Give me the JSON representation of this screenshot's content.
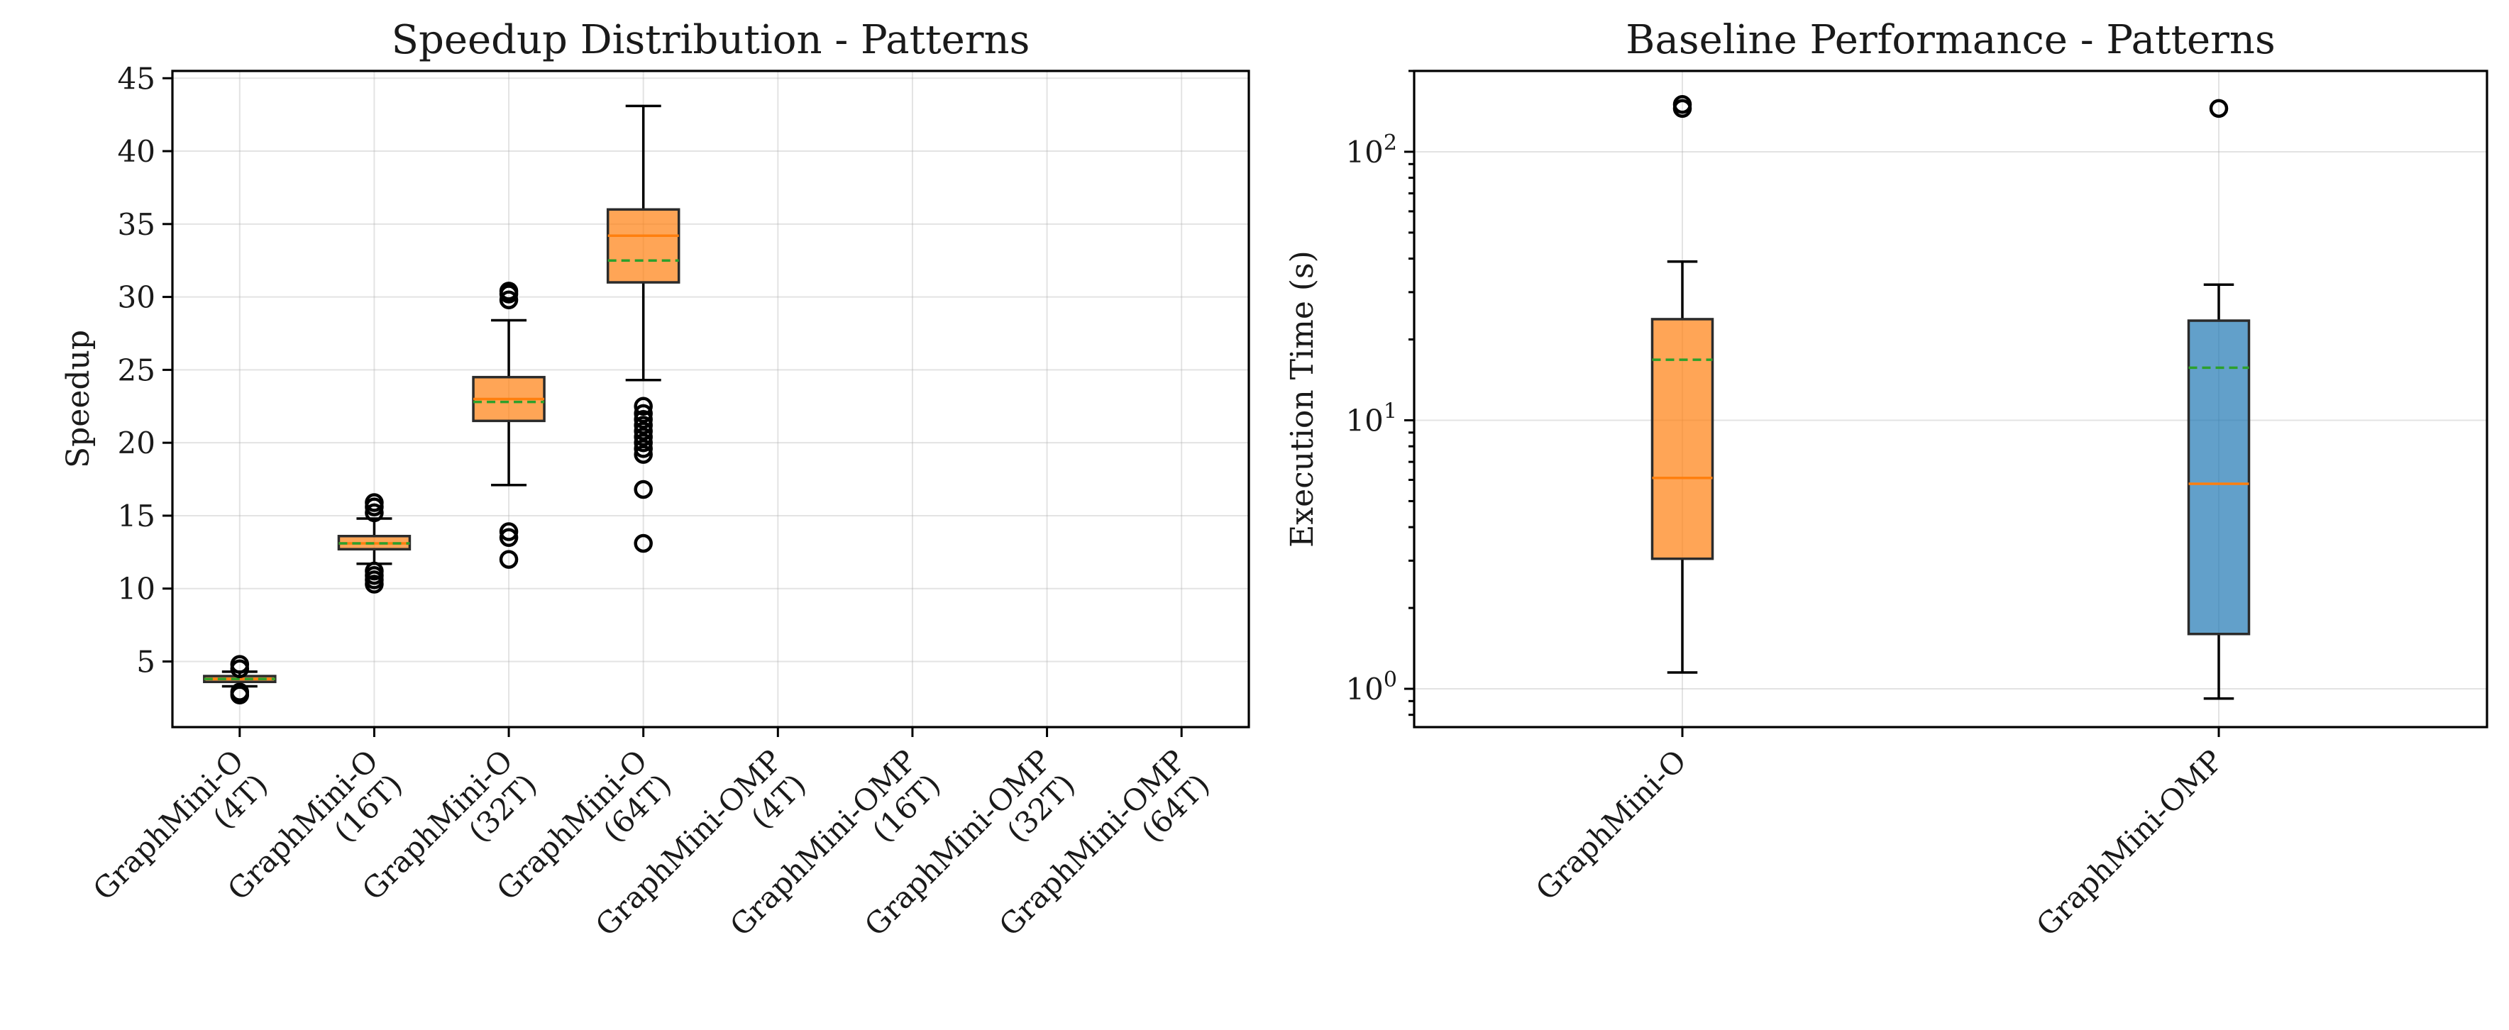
{
  "chart_data": [
    {
      "type": "box",
      "title": "Speedup Distribution - Patterns",
      "xlabel": "",
      "ylabel": "Speedup",
      "yscale": "linear",
      "ylim": [
        0.5,
        45.5
      ],
      "yticks": [
        5,
        10,
        15,
        20,
        25,
        30,
        35,
        40,
        45
      ],
      "grid": true,
      "categories": [
        [
          "GraphMini-O",
          "(4T)"
        ],
        [
          "GraphMini-O",
          "(16T)"
        ],
        [
          "GraphMini-O",
          "(32T)"
        ],
        [
          "GraphMini-O",
          "(64T)"
        ],
        [
          "GraphMini-OMP",
          "(4T)"
        ],
        [
          "GraphMini-OMP",
          "(16T)"
        ],
        [
          "GraphMini-OMP",
          "(32T)"
        ],
        [
          "GraphMini-OMP",
          "(64T)"
        ]
      ],
      "boxes": [
        {
          "whisker_low": 3.3,
          "q1": 3.6,
          "median": 3.8,
          "mean": 3.8,
          "q3": 4.0,
          "whisker_high": 4.3,
          "fliers": [
            2.7,
            2.9,
            4.5,
            4.8
          ],
          "color": "#ff7f0e"
        },
        {
          "whisker_low": 11.7,
          "q1": 12.7,
          "median": 13.1,
          "mean": 13.1,
          "q3": 13.6,
          "whisker_high": 14.8,
          "fliers": [
            10.3,
            10.6,
            10.9,
            11.2,
            15.2,
            15.6,
            15.9
          ],
          "color": "#ff7f0e"
        },
        {
          "whisker_low": 17.1,
          "q1": 21.5,
          "median": 23.0,
          "mean": 22.8,
          "q3": 24.5,
          "whisker_high": 28.4,
          "fliers": [
            12.0,
            13.5,
            13.9,
            29.8,
            30.2,
            30.4
          ],
          "color": "#ff7f0e"
        },
        {
          "whisker_low": 24.3,
          "q1": 31.0,
          "median": 34.2,
          "mean": 32.5,
          "q3": 36.0,
          "whisker_high": 43.1,
          "fliers": [
            13.1,
            16.8,
            19.2,
            19.6,
            20.0,
            20.4,
            20.8,
            21.2,
            21.6,
            22.0,
            22.5
          ],
          "color": "#ff7f0e"
        },
        null,
        null,
        null,
        null
      ]
    },
    {
      "type": "box",
      "title": "Baseline Performance - Patterns",
      "xlabel": "",
      "ylabel": "Execution Time (s)",
      "yscale": "log",
      "ylim": [
        0.72,
        200
      ],
      "yticks": [
        1,
        10,
        100
      ],
      "ytick_labels": [
        [
          "10",
          "0"
        ],
        [
          "10",
          "1"
        ],
        [
          "10",
          "2"
        ]
      ],
      "grid": true,
      "categories": [
        [
          "GraphMini-O"
        ],
        [
          "GraphMini-OMP"
        ]
      ],
      "boxes": [
        {
          "whisker_low": 1.15,
          "q1": 3.05,
          "median": 6.1,
          "mean": 16.8,
          "q3": 23.8,
          "whisker_high": 39.0,
          "fliers": [
            145,
            150
          ],
          "color": "#ff7f0e"
        },
        {
          "whisker_low": 0.92,
          "q1": 1.6,
          "median": 5.8,
          "mean": 15.7,
          "q3": 23.5,
          "whisker_high": 32.0,
          "fliers": [
            145
          ],
          "color": "#1f77b4"
        }
      ]
    }
  ]
}
